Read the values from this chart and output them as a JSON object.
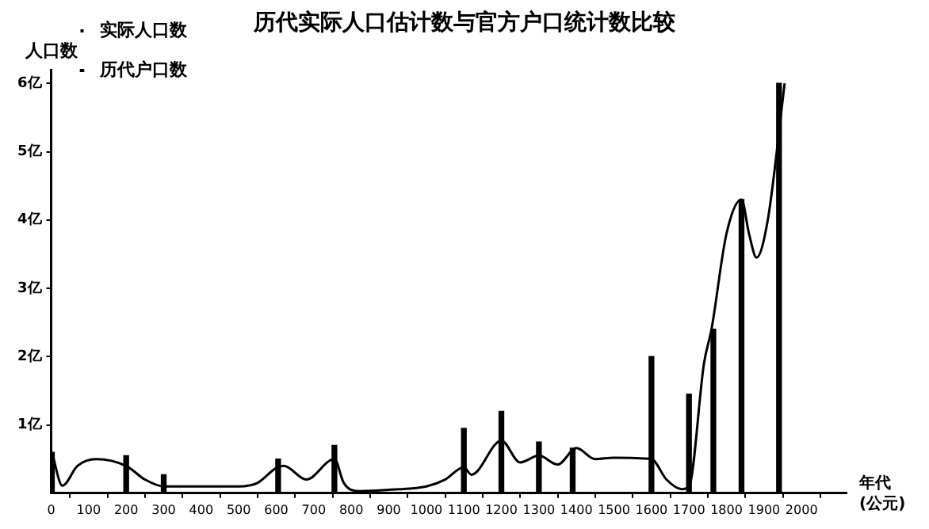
{
  "chart_data": {
    "type": "line",
    "title": "历代实际人口估计数与官方户口统计数比较",
    "xlabel": "年代 (公元)",
    "ylabel": "人口数",
    "xlim": [
      0,
      2120
    ],
    "xticks": [
      0,
      100,
      200,
      300,
      400,
      500,
      600,
      700,
      800,
      900,
      1000,
      1100,
      1200,
      1300,
      1400,
      1500,
      1600,
      1700,
      1800,
      1900,
      2000
    ],
    "ylim": [
      0,
      6.2
    ],
    "yticks": [
      {
        "value": 1,
        "label": "1亿"
      },
      {
        "value": 2,
        "label": "2亿"
      },
      {
        "value": 3,
        "label": "3亿"
      },
      {
        "value": 4,
        "label": "4亿"
      },
      {
        "value": 5,
        "label": "5亿"
      },
      {
        "value": 6,
        "label": "6亿"
      }
    ],
    "grid": false,
    "legend": "top left",
    "series": [
      {
        "name": "实际人口数",
        "type": "bar",
        "color": "#000000",
        "x": [
          2,
          200,
          300,
          605,
          755,
          1100,
          1200,
          1300,
          1390,
          1600,
          1700,
          1765,
          1840,
          1940
        ],
        "values": [
          0.6,
          0.55,
          0.27,
          0.5,
          0.7,
          0.95,
          1.2,
          0.75,
          0.66,
          2.0,
          1.45,
          2.4,
          4.3,
          6.0
        ]
      },
      {
        "name": "历代户口数",
        "color": "#000000",
        "marker": "none",
        "x": [
          2,
          30,
          70,
          120,
          200,
          250,
          300,
          400,
          500,
          550,
          600,
          620,
          680,
          755,
          780,
          820,
          900,
          1000,
          1050,
          1100,
          1120,
          1200,
          1250,
          1300,
          1350,
          1400,
          1450,
          1500,
          1600,
          1640,
          1680,
          1700,
          1740,
          1760,
          1800,
          1840,
          1860,
          1880,
          1910,
          1955
        ],
        "values": [
          0.6,
          0.11,
          0.4,
          0.5,
          0.4,
          0.2,
          0.1,
          0.1,
          0.1,
          0.15,
          0.37,
          0.4,
          0.2,
          0.5,
          0.15,
          0.03,
          0.05,
          0.1,
          0.2,
          0.38,
          0.27,
          0.77,
          0.45,
          0.55,
          0.42,
          0.66,
          0.5,
          0.52,
          0.5,
          0.2,
          0.06,
          0.1,
          1.9,
          2.4,
          3.8,
          4.3,
          3.8,
          3.45,
          4.0,
          6.0
        ]
      }
    ]
  }
}
